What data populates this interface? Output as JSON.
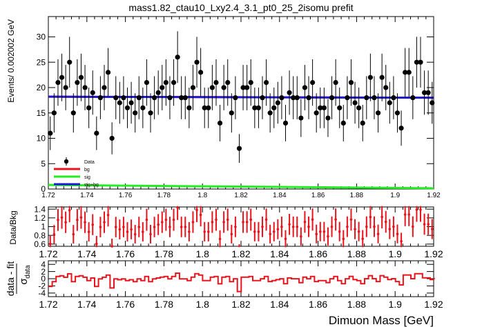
{
  "title": "mass1.82_ctau10_Lxy2.4_3.1_pt0_25_2isomu   prefit",
  "colors": {
    "data": "#000000",
    "bg": "#e8131b",
    "sig": "#22ee22",
    "sigbg": "#1a1ad0",
    "ratio": "#e8131b",
    "pull": "#e8131b"
  },
  "chart_data": [
    {
      "type": "scatter",
      "name": "main",
      "ylabel": "Events/ 0.002002 GeV",
      "xlim": [
        1.72,
        1.92
      ],
      "ylim": [
        0,
        34
      ],
      "x_ticks": [
        "1.72",
        "1.74",
        "1.76",
        "1.78",
        "1.8",
        "1.82",
        "1.84",
        "1.86",
        "1.88",
        "1.9",
        "1.92"
      ],
      "y_ticks": [
        "0",
        "5",
        "10",
        "15",
        "20",
        "25",
        "30"
      ],
      "x_start": 1.721,
      "bin_width": 0.002002,
      "data_y": [
        11,
        15,
        21,
        22,
        20,
        25,
        15,
        21,
        22,
        20,
        16,
        19,
        11,
        18,
        20,
        23,
        10,
        18,
        17,
        18,
        16,
        17,
        15,
        18,
        16,
        21,
        15,
        18,
        19,
        20,
        21,
        18,
        21,
        26,
        18,
        18,
        16,
        20,
        25,
        23,
        16,
        16,
        20,
        21,
        13,
        20,
        21,
        15,
        18,
        8,
        20,
        20,
        21,
        16,
        16,
        18,
        21,
        15,
        16,
        17,
        18,
        13,
        19,
        18,
        18,
        14,
        20,
        18,
        21,
        15,
        16,
        16,
        14,
        18,
        21,
        16,
        13,
        18,
        21,
        17,
        16,
        13,
        18,
        22,
        18,
        15,
        22,
        20,
        17,
        18,
        15,
        12,
        23,
        23,
        18,
        25,
        25,
        19,
        19,
        17,
        18
      ],
      "series": [
        {
          "name": "bg",
          "values": [
            18.2,
            18.0
          ]
        },
        {
          "name": "sig",
          "values": [
            0.8,
            0.15
          ]
        },
        {
          "name": "sig+bg",
          "values": [
            18.2,
            18.0
          ]
        }
      ],
      "legend": [
        "Data",
        "bg",
        "sig",
        "sig+bg"
      ],
      "legend_position": "bottom-left"
    },
    {
      "type": "scatter",
      "name": "ratio",
      "ylabel": "Data/Bkg",
      "xlim": [
        1.72,
        1.92
      ],
      "ylim": [
        0.55,
        1.45
      ],
      "x_ticks": [
        "1.72",
        "1.74",
        "1.76",
        "1.78",
        "1.8",
        "1.82",
        "1.84",
        "1.86",
        "1.88",
        "1.9",
        "1.92"
      ],
      "y_ticks": [
        "0.6",
        "0.8",
        "1",
        "1.2",
        "1.4"
      ]
    },
    {
      "type": "line",
      "name": "pull",
      "ylabel": "data - fit",
      "ylabel_sub": "σ",
      "ylabel_subsub": "data",
      "xlabel": "Dimuon Mass [GeV]",
      "xlim": [
        1.72,
        1.92
      ],
      "ylim": [
        -5,
        5
      ],
      "x_ticks": [
        "1.72",
        "1.74",
        "1.76",
        "1.78",
        "1.8",
        "1.82",
        "1.84",
        "1.86",
        "1.88",
        "1.9",
        "1.92"
      ],
      "y_ticks": [
        "-4",
        "-2",
        "0",
        "2",
        "4"
      ]
    }
  ]
}
